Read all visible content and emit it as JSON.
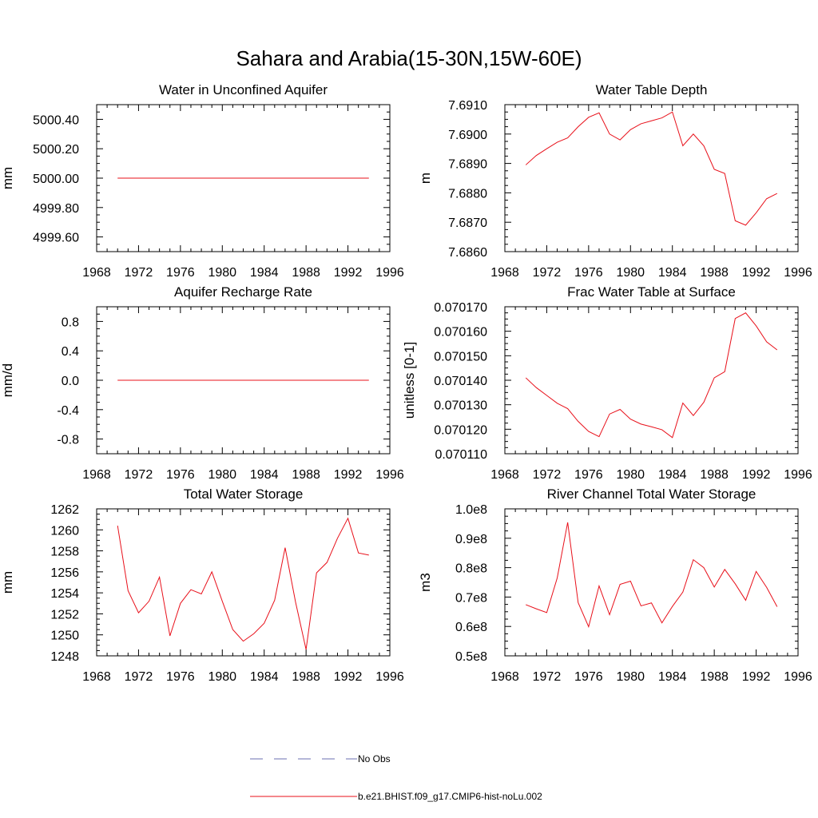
{
  "figure": {
    "title": "Sahara and Arabia(15-30N,15W-60E)",
    "line_color": "#e8101a",
    "obs_color": "#6b6fb0"
  },
  "legend": {
    "entries": [
      {
        "label": "No Obs",
        "style": "dashed",
        "color": "#6b6fb0"
      },
      {
        "label": "b.e21.BHIST.f09_g17.CMIP6-hist-noLu.002",
        "style": "solid",
        "color": "#e8101a"
      }
    ]
  },
  "chart_data": [
    {
      "type": "line",
      "title": "Water in Unconfined Aquifer",
      "xlabel": "",
      "ylabel": "mm",
      "xlim": [
        1968,
        1996
      ],
      "ylim": [
        4999.5,
        5000.5
      ],
      "xticks": [
        1968,
        1972,
        1976,
        1980,
        1984,
        1988,
        1992,
        1996
      ],
      "xtick_labels": [
        "1968",
        "1972",
        "1976",
        "1980",
        "1984",
        "1988",
        "1992",
        "1996"
      ],
      "yticks": [
        4999.6,
        4999.8,
        5000.0,
        5000.2,
        5000.4
      ],
      "ytick_labels": [
        "4999.60",
        "4999.80",
        "5000.00",
        "5000.20",
        "5000.40"
      ],
      "x": [
        1970,
        1971,
        1972,
        1973,
        1974,
        1975,
        1976,
        1977,
        1978,
        1979,
        1980,
        1981,
        1982,
        1983,
        1984,
        1985,
        1986,
        1987,
        1988,
        1989,
        1990,
        1991,
        1992,
        1993,
        1994
      ],
      "series": [
        {
          "values": [
            5000,
            5000,
            5000,
            5000,
            5000,
            5000,
            5000,
            5000,
            5000,
            5000,
            5000,
            5000,
            5000,
            5000,
            5000,
            5000,
            5000,
            5000,
            5000,
            5000,
            5000,
            5000,
            5000,
            5000,
            5000
          ]
        }
      ]
    },
    {
      "type": "line",
      "title": "Water Table Depth",
      "xlabel": "",
      "ylabel": "m",
      "xlim": [
        1968,
        1996
      ],
      "ylim": [
        7.686,
        7.691
      ],
      "xticks": [
        1968,
        1972,
        1976,
        1980,
        1984,
        1988,
        1992,
        1996
      ],
      "xtick_labels": [
        "1968",
        "1972",
        "1976",
        "1980",
        "1984",
        "1988",
        "1992",
        "1996"
      ],
      "yticks": [
        7.686,
        7.687,
        7.688,
        7.689,
        7.69,
        7.691
      ],
      "ytick_labels": [
        "7.6860",
        "7.6870",
        "7.6880",
        "7.6890",
        "7.6900",
        "7.6910"
      ],
      "x": [
        1970,
        1971,
        1972,
        1973,
        1974,
        1975,
        1976,
        1977,
        1978,
        1979,
        1980,
        1981,
        1982,
        1983,
        1984,
        1985,
        1986,
        1987,
        1988,
        1989,
        1990,
        1991,
        1992,
        1993,
        1994
      ],
      "series": [
        {
          "values": [
            7.68895,
            7.68927,
            7.6895,
            7.68972,
            7.68987,
            7.69025,
            7.69057,
            7.69072,
            7.69,
            7.6898,
            7.69015,
            7.69035,
            7.69045,
            7.69055,
            7.69075,
            7.6896,
            7.69,
            7.6896,
            7.6888,
            7.68866,
            7.68705,
            7.6869,
            7.68732,
            7.6878,
            7.68798
          ]
        }
      ]
    },
    {
      "type": "line",
      "title": "Aquifer Recharge Rate",
      "xlabel": "",
      "ylabel": "mm/d",
      "xlim": [
        1968,
        1996
      ],
      "ylim": [
        -1.0,
        1.0
      ],
      "xticks": [
        1968,
        1972,
        1976,
        1980,
        1984,
        1988,
        1992,
        1996
      ],
      "xtick_labels": [
        "1968",
        "1972",
        "1976",
        "1980",
        "1984",
        "1988",
        "1992",
        "1996"
      ],
      "yticks": [
        -0.8,
        -0.4,
        0.0,
        0.4,
        0.8
      ],
      "ytick_labels": [
        "-0.8",
        "-0.4",
        "0.0",
        "0.4",
        "0.8"
      ],
      "x": [
        1970,
        1971,
        1972,
        1973,
        1974,
        1975,
        1976,
        1977,
        1978,
        1979,
        1980,
        1981,
        1982,
        1983,
        1984,
        1985,
        1986,
        1987,
        1988,
        1989,
        1990,
        1991,
        1992,
        1993,
        1994
      ],
      "series": [
        {
          "values": [
            0,
            0,
            0,
            0,
            0,
            0,
            0,
            0,
            0,
            0,
            0,
            0,
            0,
            0,
            0,
            0,
            0,
            0,
            0,
            0,
            0,
            0,
            0,
            0,
            0
          ]
        }
      ]
    },
    {
      "type": "line",
      "title": "Frac Water Table at Surface",
      "xlabel": "",
      "ylabel": "unitless [0-1]",
      "xlim": [
        1968,
        1996
      ],
      "ylim": [
        0.07011,
        0.07017
      ],
      "xticks": [
        1968,
        1972,
        1976,
        1980,
        1984,
        1988,
        1992,
        1996
      ],
      "xtick_labels": [
        "1968",
        "1972",
        "1976",
        "1980",
        "1984",
        "1988",
        "1992",
        "1996"
      ],
      "yticks": [
        0.07011,
        0.07012,
        0.07013,
        0.07014,
        0.07015,
        0.07016,
        0.07017
      ],
      "ytick_labels": [
        "0.070110",
        "0.070120",
        "0.070130",
        "0.070140",
        "0.070150",
        "0.070160",
        "0.070170"
      ],
      "x": [
        1970,
        1971,
        1972,
        1973,
        1974,
        1975,
        1976,
        1977,
        1978,
        1979,
        1980,
        1981,
        1982,
        1983,
        1984,
        1985,
        1986,
        1987,
        1988,
        1989,
        1990,
        1991,
        1992,
        1993,
        1994
      ],
      "series": [
        {
          "values": [
            0.070141,
            0.070137,
            0.0701338,
            0.0701306,
            0.0701284,
            0.0701232,
            0.0701191,
            0.070117,
            0.0701262,
            0.0701281,
            0.0701241,
            0.0701221,
            0.070121,
            0.0701198,
            0.0701166,
            0.0701307,
            0.0701256,
            0.070131,
            0.070141,
            0.0701435,
            0.0701652,
            0.0701675,
            0.0701622,
            0.0701557,
            0.0701524
          ]
        }
      ]
    },
    {
      "type": "line",
      "title": "Total Water Storage",
      "xlabel": "",
      "ylabel": "mm",
      "xlim": [
        1968,
        1996
      ],
      "ylim": [
        1248,
        1262
      ],
      "xticks": [
        1968,
        1972,
        1976,
        1980,
        1984,
        1988,
        1992,
        1996
      ],
      "xtick_labels": [
        "1968",
        "1972",
        "1976",
        "1980",
        "1984",
        "1988",
        "1992",
        "1996"
      ],
      "yticks": [
        1248,
        1250,
        1252,
        1254,
        1256,
        1258,
        1260,
        1262
      ],
      "ytick_labels": [
        "1248",
        "1250",
        "1252",
        "1254",
        "1256",
        "1258",
        "1260",
        "1262"
      ],
      "x": [
        1970,
        1971,
        1972,
        1973,
        1974,
        1975,
        1976,
        1977,
        1978,
        1979,
        1980,
        1981,
        1982,
        1983,
        1984,
        1985,
        1986,
        1987,
        1988,
        1989,
        1990,
        1991,
        1992,
        1993,
        1994
      ],
      "series": [
        {
          "values": [
            1260.4,
            1254.2,
            1252.1,
            1253.2,
            1255.5,
            1249.9,
            1253.0,
            1254.3,
            1253.9,
            1256.0,
            1253.2,
            1250.5,
            1249.4,
            1250.1,
            1251.1,
            1253.3,
            1258.3,
            1253.1,
            1248.6,
            1255.9,
            1256.9,
            1259.2,
            1261.1,
            1257.8,
            1257.6
          ]
        }
      ]
    },
    {
      "type": "line",
      "title": "River Channel Total Water Storage",
      "xlabel": "",
      "ylabel": "m3",
      "xlim": [
        1968,
        1996
      ],
      "ylim": [
        50000000,
        100000000
      ],
      "xticks": [
        1968,
        1972,
        1976,
        1980,
        1984,
        1988,
        1992,
        1996
      ],
      "xtick_labels": [
        "1968",
        "1972",
        "1976",
        "1980",
        "1984",
        "1988",
        "1992",
        "1996"
      ],
      "yticks": [
        50000000,
        60000000,
        70000000,
        80000000,
        90000000,
        100000000
      ],
      "ytick_labels": [
        "0.5e8",
        "0.6e8",
        "0.7e8",
        "0.8e8",
        "0.9e8",
        "1.0e8"
      ],
      "x": [
        1970,
        1971,
        1972,
        1973,
        1974,
        1975,
        1976,
        1977,
        1978,
        1979,
        1980,
        1981,
        1982,
        1983,
        1984,
        1985,
        1986,
        1987,
        1988,
        1989,
        1990,
        1991,
        1992,
        1993,
        1994
      ],
      "series": [
        {
          "values": [
            67400000,
            66000000,
            64700000,
            76500000,
            95400000,
            68100000,
            59900000,
            73800000,
            64000000,
            74300000,
            75400000,
            67000000,
            68000000,
            61200000,
            66800000,
            71700000,
            82700000,
            80000000,
            73400000,
            79400000,
            74500000,
            68900000,
            78700000,
            73300000,
            66700000
          ]
        }
      ]
    }
  ]
}
